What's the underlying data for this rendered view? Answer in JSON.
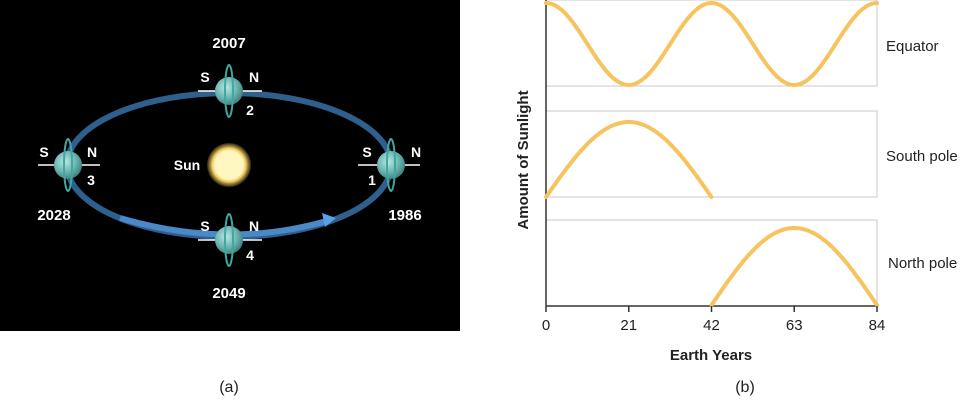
{
  "panel_a": {
    "caption": "(a)",
    "sun_label": "Sun",
    "orbit_arrow_color": "#4a90d9",
    "planets": [
      {
        "number": "1",
        "year": "1986",
        "south": "S",
        "north": "N"
      },
      {
        "number": "2",
        "year": "2007",
        "south": "S",
        "north": "N"
      },
      {
        "number": "3",
        "year": "2028",
        "south": "S",
        "north": "N"
      },
      {
        "number": "4",
        "year": "2049",
        "south": "S",
        "north": "N"
      }
    ]
  },
  "panel_b": {
    "caption": "(b)",
    "ylabel": "Amount of Sunlight",
    "xlabel": "Earth Years",
    "curve_color": "#f7c35f",
    "chart_data": {
      "type": "line",
      "x_ticks": [
        "0",
        "21",
        "42",
        "63",
        "84"
      ],
      "xlim": [
        0,
        84
      ],
      "panels": [
        {
          "label": "Equator",
          "shape": "cosine (max at 0, 42, 84; min at 21, 63)",
          "x": [
            0,
            21,
            42,
            63,
            84
          ],
          "relative_y": [
            1,
            0,
            1,
            0,
            1
          ]
        },
        {
          "label": "South pole",
          "shape": "arch",
          "x": [
            0,
            21,
            42
          ],
          "relative_y": [
            0,
            1,
            0
          ]
        },
        {
          "label": "North pole",
          "shape": "arch",
          "x": [
            42,
            63,
            84
          ],
          "relative_y": [
            0,
            1,
            0
          ]
        }
      ]
    }
  }
}
